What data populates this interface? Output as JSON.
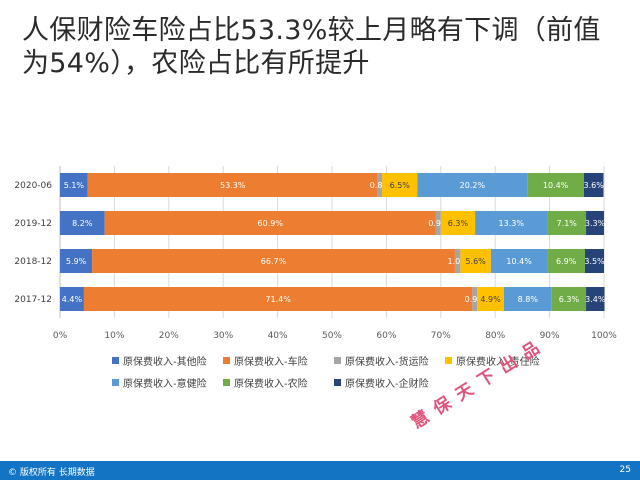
{
  "title": "人保财险车险占比53.3%较上月略有下调（前值为54%），农险占比有所提升",
  "chart_data": {
    "type": "bar",
    "orientation": "horizontal",
    "stacked": "percent",
    "categories": [
      "2020-06",
      "2019-12",
      "2018-12",
      "2017-12"
    ],
    "xlim": [
      0,
      100
    ],
    "x_ticks": [
      "0%",
      "10%",
      "20%",
      "30%",
      "40%",
      "50%",
      "60%",
      "70%",
      "80%",
      "90%",
      "100%"
    ],
    "grid": true,
    "legend_position": "bottom",
    "series": [
      {
        "name": "原保费收入-其他险",
        "color": "#4472c4",
        "values": [
          5.1,
          8.2,
          5.9,
          4.4
        ],
        "labels": [
          "5.1%",
          "8.2%",
          "5.9%",
          "4.4%"
        ]
      },
      {
        "name": "原保费收入-车险",
        "color": "#ed7d31",
        "values": [
          53.3,
          60.9,
          66.7,
          71.4
        ],
        "labels": [
          "53.3%",
          "60.9%",
          "66.7%",
          "71.4%"
        ]
      },
      {
        "name": "原保费收入-货运险",
        "color": "#a5a5a5",
        "values": [
          0.8,
          0.9,
          1.0,
          0.9
        ],
        "labels": [
          "0.8%",
          "0.9%",
          "1.0%",
          "0.9%"
        ]
      },
      {
        "name": "原保费收入-责任险",
        "color": "#ffc000",
        "values": [
          6.5,
          6.3,
          5.6,
          4.9
        ],
        "labels": [
          "6.5%",
          "6.3%",
          "5.6%",
          "4.9%"
        ]
      },
      {
        "name": "原保费收入-意健险",
        "color": "#5b9bd5",
        "values": [
          20.2,
          13.3,
          10.4,
          8.8
        ],
        "labels": [
          "20.2%",
          "13.3%",
          "10.4%",
          "8.8%"
        ]
      },
      {
        "name": "原保费收入-农险",
        "color": "#70ad47",
        "values": [
          10.4,
          7.1,
          6.9,
          6.3
        ],
        "labels": [
          "10.4%",
          "7.1%",
          "6.9%",
          "6.3%"
        ]
      },
      {
        "name": "原保费收入-企财险",
        "color": "#264478",
        "values": [
          3.6,
          3.3,
          3.5,
          3.4
        ],
        "labels": [
          "3.6%",
          "3.3%",
          "3.5%",
          "3.4%"
        ]
      }
    ]
  },
  "watermark": "慧保天下出品",
  "footer": {
    "copyright": "© 版权所有 长期数据",
    "page_number": "25"
  }
}
